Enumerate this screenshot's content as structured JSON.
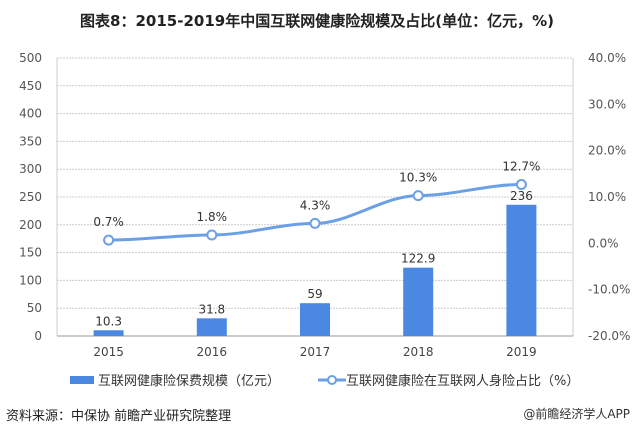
{
  "title": "图表8：2015-2019年中国互联网健康险规模及占比(单位：亿元，%)",
  "chart_data": {
    "type": "bar+line",
    "categories": [
      "2015",
      "2016",
      "2017",
      "2018",
      "2019"
    ],
    "series": [
      {
        "name": "互联网健康险保费规模（亿元）",
        "type": "bar",
        "axis": "left",
        "values": [
          10.3,
          31.8,
          59,
          122.9,
          236
        ],
        "labels": [
          "10.3",
          "31.8",
          "59",
          "122.9",
          "236"
        ],
        "color": "#4a88e2"
      },
      {
        "name": "互联网健康险在互联网人身险占比（%）",
        "type": "line",
        "axis": "right",
        "values": [
          0.7,
          1.8,
          4.3,
          10.3,
          12.7
        ],
        "labels": [
          "0.7%",
          "1.8%",
          "4.3%",
          "10.3%",
          "12.7%"
        ],
        "color": "#6ca0e6"
      }
    ],
    "left_axis": {
      "range": [
        0,
        500
      ],
      "ticks": [
        "0",
        "50",
        "100",
        "150",
        "200",
        "250",
        "300",
        "350",
        "400",
        "450",
        "500"
      ]
    },
    "right_axis": {
      "range": [
        -20,
        40
      ],
      "ticks": [
        "-20.0%",
        "-10.0%",
        "0.0%",
        "10.0%",
        "20.0%",
        "30.0%",
        "40.0%"
      ]
    },
    "grid": true,
    "legend": "bottom"
  },
  "source": "资料来源：中保协  前瞻产业研究院整理",
  "brand": "@前瞻经济学人APP"
}
